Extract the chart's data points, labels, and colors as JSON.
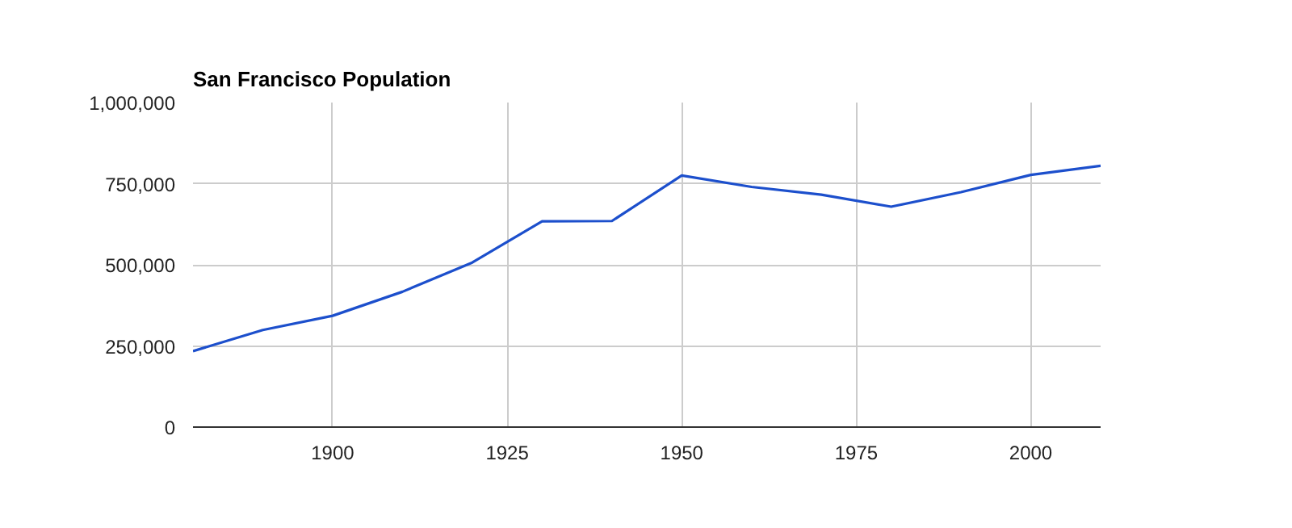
{
  "chart_data": {
    "type": "line",
    "title": "San Francisco Population",
    "x": [
      1880,
      1890,
      1900,
      1910,
      1920,
      1930,
      1940,
      1950,
      1960,
      1970,
      1980,
      1990,
      2000,
      2010
    ],
    "series": [
      {
        "color": "#1c4fcc",
        "values": [
          234000,
          299000,
          343000,
          417000,
          507000,
          634000,
          635000,
          775000,
          740000,
          716000,
          679000,
          724000,
          777000,
          805000
        ]
      }
    ],
    "xlim": [
      1880,
      2010
    ],
    "xticks": [
      1900,
      1925,
      1950,
      1975,
      2000
    ],
    "ylim": [
      0,
      1000000
    ],
    "yticks": [
      {
        "value": 0,
        "label": "0"
      },
      {
        "value": 250000,
        "label": "250,000"
      },
      {
        "value": 500000,
        "label": "500,000"
      },
      {
        "value": 750000,
        "label": "750,000"
      },
      {
        "value": 1000000,
        "label": "1,000,000"
      }
    ],
    "grid": true
  }
}
